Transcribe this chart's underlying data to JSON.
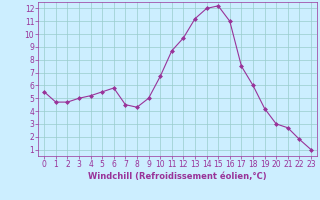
{
  "x": [
    0,
    1,
    2,
    3,
    4,
    5,
    6,
    7,
    8,
    9,
    10,
    11,
    12,
    13,
    14,
    15,
    16,
    17,
    18,
    19,
    20,
    21,
    22,
    23
  ],
  "y": [
    5.5,
    4.7,
    4.7,
    5.0,
    5.2,
    5.5,
    5.8,
    4.5,
    4.3,
    5.0,
    6.7,
    8.7,
    9.7,
    11.2,
    12.0,
    12.2,
    11.0,
    7.5,
    6.0,
    4.2,
    3.0,
    2.7,
    1.8,
    1.0
  ],
  "line_color": "#993399",
  "marker": "D",
  "marker_size": 2,
  "bg_color": "#cceeff",
  "grid_color": "#99cccc",
  "xlabel": "Windchill (Refroidissement éolien,°C)",
  "xlabel_color": "#993399",
  "xlabel_fontsize": 6.0,
  "tick_color": "#993399",
  "tick_fontsize": 5.5,
  "xlim": [
    -0.5,
    23.5
  ],
  "ylim": [
    0.5,
    12.5
  ],
  "yticks": [
    1,
    2,
    3,
    4,
    5,
    6,
    7,
    8,
    9,
    10,
    11,
    12
  ],
  "xtick_labels": [
    "0",
    "1",
    "2",
    "3",
    "4",
    "5",
    "6",
    "7",
    "8",
    "9",
    "10",
    "11",
    "12",
    "13",
    "14",
    "15",
    "16",
    "17",
    "18",
    "19",
    "20",
    "21",
    "22",
    "23"
  ]
}
